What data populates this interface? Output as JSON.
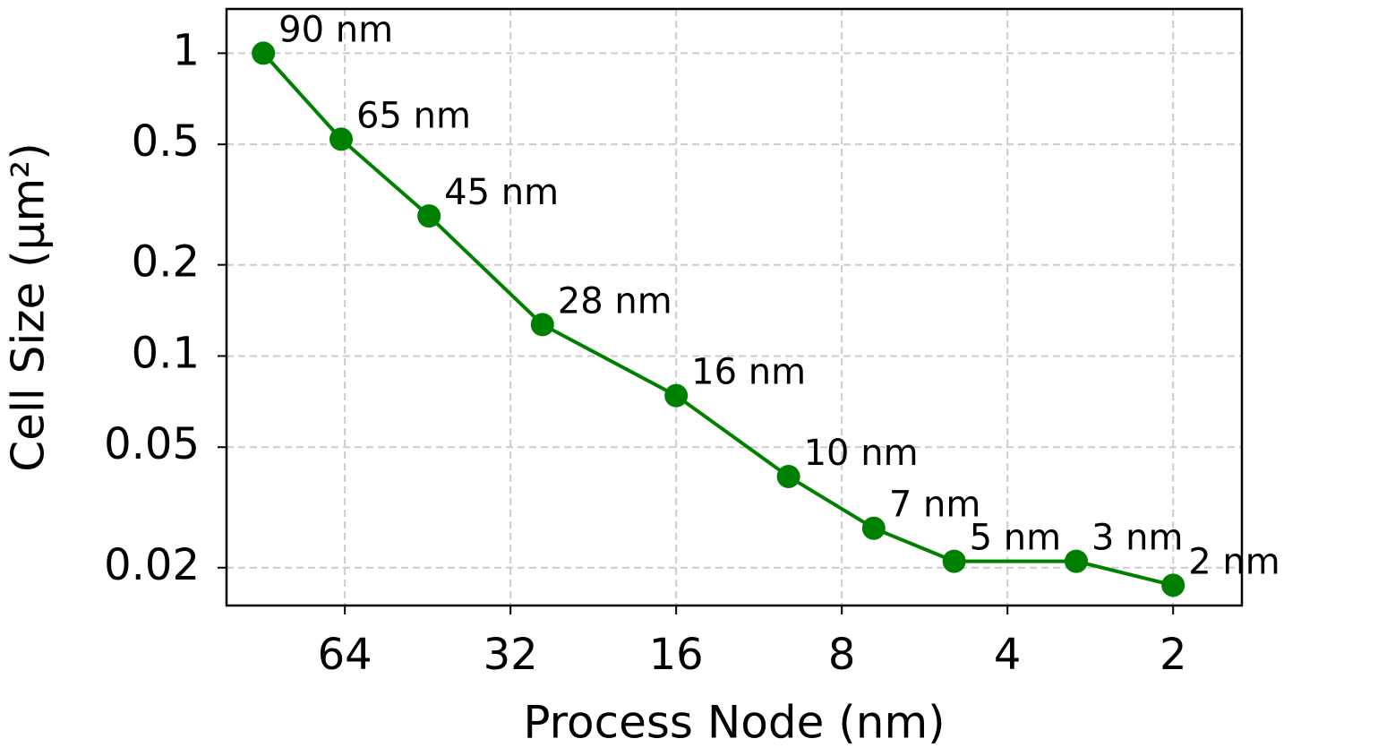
{
  "chart_data": {
    "type": "line",
    "xlabel": "Process Node (nm)",
    "ylabel": "Cell Size (µm²)",
    "x": [
      90,
      65,
      45,
      28,
      16,
      10,
      7,
      5,
      3,
      2
    ],
    "series": [
      {
        "color": "#008000",
        "values": [
          1.0,
          0.52,
          0.29,
          0.127,
          0.074,
          0.04,
          0.027,
          0.021,
          0.021,
          0.0175
        ],
        "point_labels": [
          "90 nm",
          "65 nm",
          "45 nm",
          "28 nm",
          "16 nm",
          "10 nm",
          "7 nm",
          "5 nm",
          "3 nm",
          "2 nm"
        ]
      }
    ],
    "xscale": "log",
    "yscale": "log",
    "xlim": [
      105,
      1.5
    ],
    "ylim": [
      0.015,
      1.4
    ],
    "xticks": [
      64,
      32,
      16,
      8,
      4,
      2
    ],
    "yticks": [
      0.02,
      0.05,
      0.1,
      0.2,
      0.5,
      1
    ],
    "grid": true
  }
}
